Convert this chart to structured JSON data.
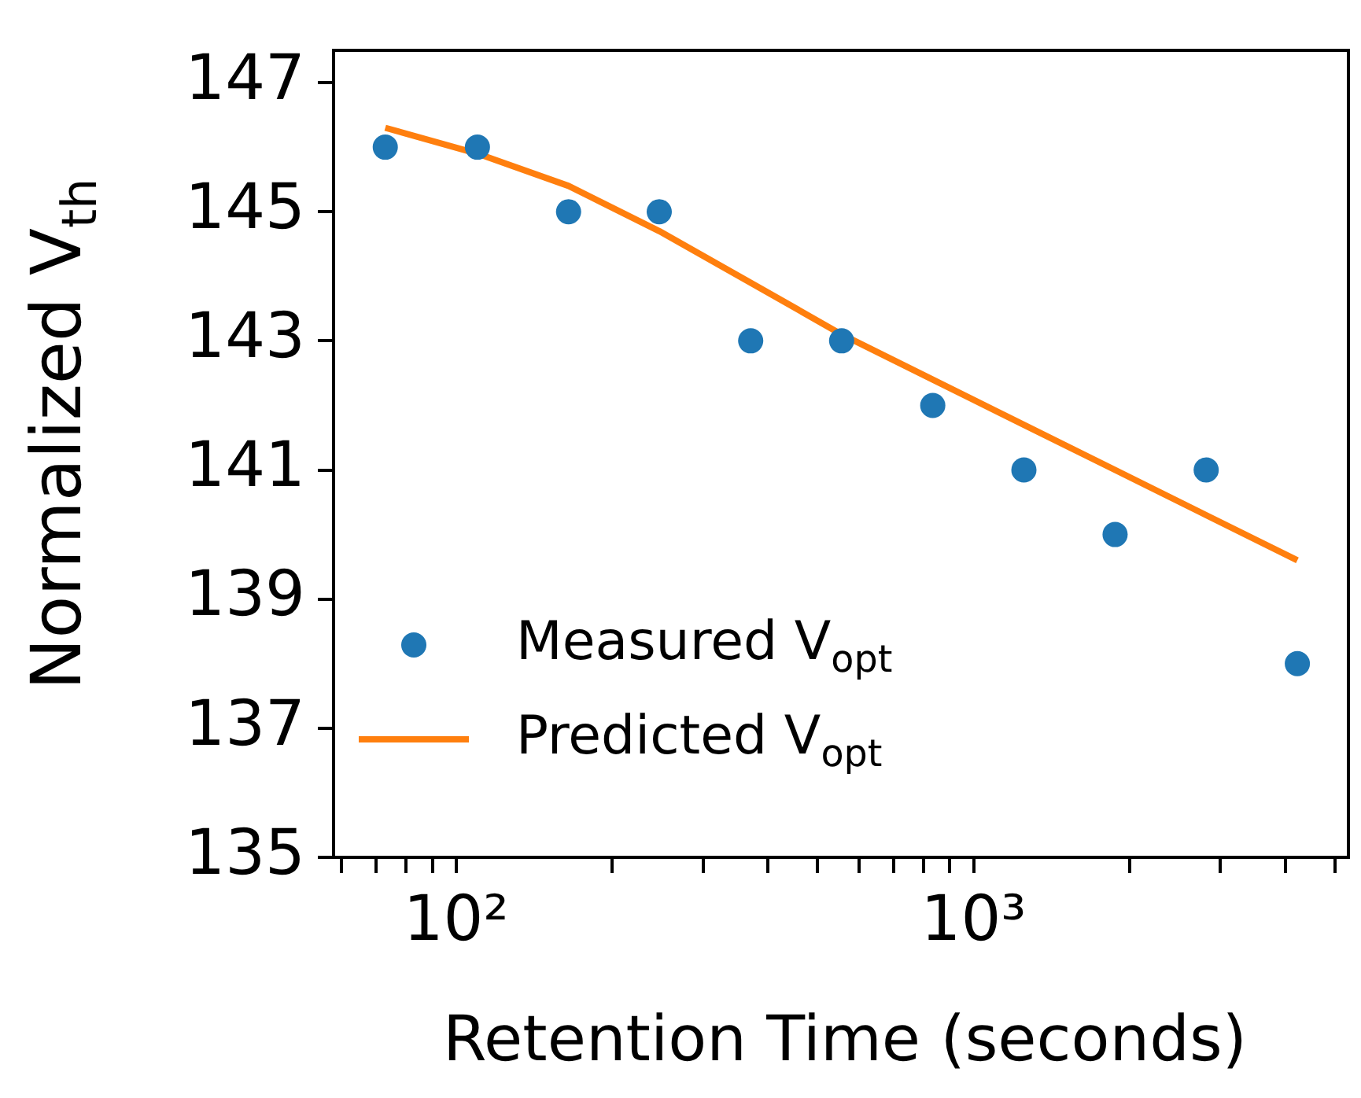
{
  "chart_data": {
    "type": "scatter",
    "xlabel": "Retention Time (seconds)",
    "ylabel": "Normalized V$_{th}$",
    "log": "x",
    "xlim": [
      58,
      5300
    ],
    "xticks": [
      {
        "value": 60,
        "label": null
      },
      {
        "value": 70,
        "label": null
      },
      {
        "value": 80,
        "label": null
      },
      {
        "value": 90,
        "label": null
      },
      {
        "value": 100,
        "label": "10²"
      },
      {
        "value": 200,
        "label": null
      },
      {
        "value": 300,
        "label": null
      },
      {
        "value": 400,
        "label": null
      },
      {
        "value": 500,
        "label": null
      },
      {
        "value": 600,
        "label": null
      },
      {
        "value": 700,
        "label": null
      },
      {
        "value": 800,
        "label": null
      },
      {
        "value": 900,
        "label": null
      },
      {
        "value": 1000,
        "label": "10³"
      },
      {
        "value": 2000,
        "label": null
      },
      {
        "value": 3000,
        "label": null
      },
      {
        "value": 4000,
        "label": null
      },
      {
        "value": 5000,
        "label": null
      }
    ],
    "ylim": [
      135,
      147.5
    ],
    "yticks": [
      135,
      137,
      139,
      141,
      143,
      145,
      147
    ],
    "grid": false,
    "legend": "bottom left",
    "series": [
      {
        "name": "Measured V$_{opt}$",
        "color": "#1f77b4",
        "marker": "circle",
        "x": [
          73,
          110,
          165,
          247,
          371,
          556,
          834,
          1251,
          1877,
          2815,
          4223
        ],
        "values": [
          146,
          146,
          145,
          145,
          143,
          143,
          142,
          141,
          140,
          141,
          138
        ]
      },
      {
        "name": "Predicted V$_{opt}$",
        "type": "line",
        "color": "#ff7f0e",
        "marker": "none",
        "line_style": "solid",
        "x": [
          73,
          110,
          165,
          247,
          371,
          556,
          834,
          1251,
          1877,
          2815,
          4223
        ],
        "values": [
          146.3,
          145.9,
          145.4,
          144.7,
          143.9,
          143.1,
          142.4,
          141.7,
          141.0,
          140.3,
          139.6
        ]
      }
    ]
  }
}
